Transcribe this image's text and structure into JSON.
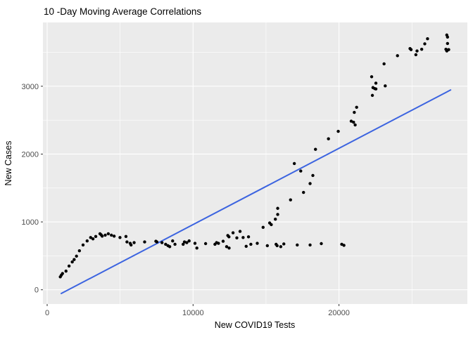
{
  "chart_data": {
    "type": "scatter",
    "title": "10 -Day Moving Average Correlations",
    "xlabel": "New COVID19 Tests",
    "ylabel": "New Cases",
    "xlim": [
      -290,
      28800
    ],
    "ylim": [
      -210,
      3940
    ],
    "x_major_ticks": [
      0,
      10000,
      20000
    ],
    "x_minor_ticks": [
      5000,
      15000,
      25000
    ],
    "y_major_ticks": [
      0,
      1000,
      2000,
      3000
    ],
    "y_minor_ticks": [
      500,
      1500,
      2500,
      3500
    ],
    "grid": true,
    "legend": "none",
    "panel_bg": "#EBEBEB",
    "grid_color": "#FFFFFF",
    "point_color": "#000000",
    "tick_color": "#333333",
    "tick_label_color": "#4D4D4D",
    "trend_line": {
      "type": "linear",
      "color": "#3C64E0",
      "x": [
        966,
        27650
      ],
      "y": [
        -55,
        2945
      ]
    },
    "points": [
      [
        900,
        190
      ],
      [
        970,
        215
      ],
      [
        1050,
        240
      ],
      [
        1290,
        275
      ],
      [
        1500,
        350
      ],
      [
        1720,
        410
      ],
      [
        1850,
        445
      ],
      [
        2010,
        495
      ],
      [
        2210,
        575
      ],
      [
        2460,
        660
      ],
      [
        2740,
        720
      ],
      [
        2980,
        770
      ],
      [
        3140,
        750
      ],
      [
        3330,
        785
      ],
      [
        3620,
        825
      ],
      [
        3700,
        810
      ],
      [
        3770,
        790
      ],
      [
        3980,
        805
      ],
      [
        4190,
        825
      ],
      [
        4400,
        805
      ],
      [
        4590,
        790
      ],
      [
        4990,
        770
      ],
      [
        5400,
        785
      ],
      [
        5470,
        705
      ],
      [
        5690,
        685
      ],
      [
        5750,
        660
      ],
      [
        5960,
        695
      ],
      [
        6680,
        705
      ],
      [
        7450,
        715
      ],
      [
        7520,
        705
      ],
      [
        7870,
        695
      ],
      [
        8120,
        670
      ],
      [
        8280,
        650
      ],
      [
        8400,
        635
      ],
      [
        8600,
        720
      ],
      [
        8760,
        670
      ],
      [
        9320,
        670
      ],
      [
        9410,
        705
      ],
      [
        9570,
        695
      ],
      [
        9730,
        720
      ],
      [
        10130,
        685
      ],
      [
        10260,
        615
      ],
      [
        10860,
        680
      ],
      [
        11500,
        670
      ],
      [
        11610,
        695
      ],
      [
        11740,
        685
      ],
      [
        12060,
        715
      ],
      [
        12300,
        635
      ],
      [
        12380,
        800
      ],
      [
        12460,
        780
      ],
      [
        12470,
        615
      ],
      [
        12740,
        840
      ],
      [
        13000,
        765
      ],
      [
        13220,
        860
      ],
      [
        13430,
        770
      ],
      [
        13640,
        640
      ],
      [
        13800,
        780
      ],
      [
        13960,
        670
      ],
      [
        14400,
        685
      ],
      [
        14800,
        920
      ],
      [
        15090,
        650
      ],
      [
        15250,
        985
      ],
      [
        15360,
        960
      ],
      [
        15640,
        1040
      ],
      [
        15690,
        670
      ],
      [
        15760,
        650
      ],
      [
        15800,
        1110
      ],
      [
        15800,
        1200
      ],
      [
        16010,
        635
      ],
      [
        16220,
        675
      ],
      [
        16680,
        1325
      ],
      [
        16940,
        1860
      ],
      [
        17140,
        660
      ],
      [
        17380,
        1750
      ],
      [
        17570,
        1435
      ],
      [
        18020,
        660
      ],
      [
        18020,
        1565
      ],
      [
        18210,
        1685
      ],
      [
        18390,
        2070
      ],
      [
        18790,
        680
      ],
      [
        19280,
        2225
      ],
      [
        19950,
        2335
      ],
      [
        20190,
        670
      ],
      [
        20340,
        655
      ],
      [
        20840,
        2485
      ],
      [
        21000,
        2470
      ],
      [
        21110,
        2430
      ],
      [
        21050,
        2615
      ],
      [
        21210,
        2690
      ],
      [
        22240,
        3140
      ],
      [
        22290,
        2865
      ],
      [
        22330,
        2980
      ],
      [
        22450,
        2965
      ],
      [
        22530,
        2960
      ],
      [
        22530,
        3045
      ],
      [
        23090,
        3330
      ],
      [
        23170,
        3005
      ],
      [
        24010,
        3450
      ],
      [
        24870,
        3555
      ],
      [
        24940,
        3540
      ],
      [
        25270,
        3465
      ],
      [
        25350,
        3520
      ],
      [
        25670,
        3545
      ],
      [
        25880,
        3625
      ],
      [
        26070,
        3700
      ],
      [
        27330,
        3545
      ],
      [
        27390,
        3520
      ],
      [
        27390,
        3755
      ],
      [
        27440,
        3630
      ],
      [
        27440,
        3725
      ],
      [
        27520,
        3540
      ]
    ]
  }
}
